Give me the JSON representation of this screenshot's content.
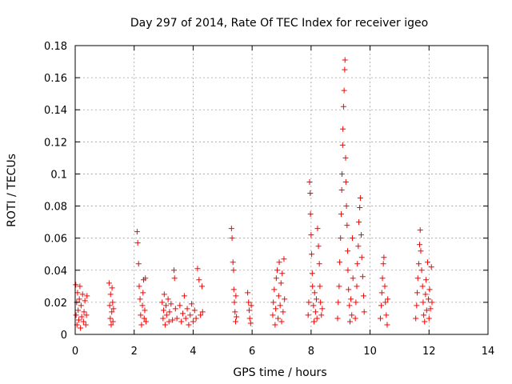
{
  "chart_data": {
    "type": "scatter",
    "title": "Day 297 of 2014, Rate Of TEC Index for receiver igeo",
    "xlabel": "GPS time / hours",
    "ylabel": "ROTI / TECUs",
    "xlim": [
      0,
      14
    ],
    "ylim": [
      0,
      0.18
    ],
    "xticks": [
      "0",
      "2",
      "4",
      "6",
      "8",
      "10",
      "12",
      "14"
    ],
    "yticks": [
      "0",
      "0.02",
      "0.04",
      "0.06",
      "0.08",
      "0.1",
      "0.12",
      "0.14",
      "0.16",
      "0.18"
    ],
    "grid": true,
    "marker": "+",
    "color": "#ff0000",
    "series": [
      {
        "name": "ROTI",
        "points": [
          [
            0.02,
            0.031
          ],
          [
            0.03,
            0.012
          ],
          [
            0.05,
            0.02
          ],
          [
            0.06,
            0.006
          ],
          [
            0.08,
            0.026
          ],
          [
            0.1,
            0.015
          ],
          [
            0.12,
            0.009
          ],
          [
            0.14,
            0.022
          ],
          [
            0.16,
            0.03
          ],
          [
            0.18,
            0.004
          ],
          [
            0.2,
            0.018
          ],
          [
            0.22,
            0.011
          ],
          [
            0.25,
            0.025
          ],
          [
            0.28,
            0.008
          ],
          [
            0.3,
            0.014
          ],
          [
            0.33,
            0.021
          ],
          [
            0.36,
            0.006
          ],
          [
            0.38,
            0.012
          ],
          [
            0.4,
            0.024
          ],
          [
            1.15,
            0.032
          ],
          [
            1.17,
            0.018
          ],
          [
            1.19,
            0.01
          ],
          [
            1.2,
            0.025
          ],
          [
            1.22,
            0.006
          ],
          [
            1.24,
            0.014
          ],
          [
            1.25,
            0.029
          ],
          [
            1.27,
            0.02
          ],
          [
            1.28,
            0.008
          ],
          [
            1.3,
            0.016
          ],
          [
            2.1,
            0.064
          ],
          [
            2.12,
            0.057
          ],
          [
            2.15,
            0.044
          ],
          [
            2.17,
            0.03
          ],
          [
            2.2,
            0.022
          ],
          [
            2.22,
            0.012
          ],
          [
            2.25,
            0.006
          ],
          [
            2.28,
            0.018
          ],
          [
            2.3,
            0.026
          ],
          [
            2.32,
            0.034
          ],
          [
            2.34,
            0.01
          ],
          [
            2.36,
            0.015
          ],
          [
            2.38,
            0.035
          ],
          [
            2.4,
            0.008
          ],
          [
            2.95,
            0.02
          ],
          [
            2.98,
            0.01
          ],
          [
            3.0,
            0.015
          ],
          [
            3.02,
            0.025
          ],
          [
            3.05,
            0.006
          ],
          [
            3.08,
            0.018
          ],
          [
            3.1,
            0.012
          ],
          [
            3.15,
            0.022
          ],
          [
            3.18,
            0.008
          ],
          [
            3.2,
            0.014
          ],
          [
            3.25,
            0.019
          ],
          [
            3.3,
            0.009
          ],
          [
            3.35,
            0.04
          ],
          [
            3.37,
            0.035
          ],
          [
            3.4,
            0.016
          ],
          [
            3.45,
            0.01
          ],
          [
            3.55,
            0.018
          ],
          [
            3.6,
            0.008
          ],
          [
            3.65,
            0.013
          ],
          [
            3.7,
            0.024
          ],
          [
            3.75,
            0.01
          ],
          [
            3.8,
            0.016
          ],
          [
            3.85,
            0.006
          ],
          [
            3.9,
            0.012
          ],
          [
            3.95,
            0.019
          ],
          [
            4.0,
            0.008
          ],
          [
            4.05,
            0.015
          ],
          [
            4.1,
            0.01
          ],
          [
            4.15,
            0.041
          ],
          [
            4.2,
            0.034
          ],
          [
            4.25,
            0.012
          ],
          [
            4.3,
            0.03
          ],
          [
            4.32,
            0.014
          ],
          [
            5.3,
            0.066
          ],
          [
            5.32,
            0.06
          ],
          [
            5.35,
            0.045
          ],
          [
            5.37,
            0.04
          ],
          [
            5.38,
            0.028
          ],
          [
            5.4,
            0.02
          ],
          [
            5.42,
            0.014
          ],
          [
            5.44,
            0.008
          ],
          [
            5.45,
            0.024
          ],
          [
            5.47,
            0.011
          ],
          [
            5.85,
            0.026
          ],
          [
            5.88,
            0.02
          ],
          [
            5.9,
            0.015
          ],
          [
            5.92,
            0.01
          ],
          [
            5.95,
            0.007
          ],
          [
            5.97,
            0.018
          ],
          [
            6.7,
            0.012
          ],
          [
            6.72,
            0.02
          ],
          [
            6.75,
            0.028
          ],
          [
            6.78,
            0.006
          ],
          [
            6.8,
            0.016
          ],
          [
            6.82,
            0.035
          ],
          [
            6.85,
            0.04
          ],
          [
            6.88,
            0.01
          ],
          [
            6.9,
            0.024
          ],
          [
            6.92,
            0.045
          ],
          [
            6.95,
            0.018
          ],
          [
            6.98,
            0.032
          ],
          [
            7.0,
            0.008
          ],
          [
            7.02,
            0.038
          ],
          [
            7.05,
            0.014
          ],
          [
            7.08,
            0.047
          ],
          [
            7.1,
            0.022
          ],
          [
            7.9,
            0.012
          ],
          [
            7.92,
            0.02
          ],
          [
            7.95,
            0.095
          ],
          [
            7.97,
            0.088
          ],
          [
            7.98,
            0.075
          ],
          [
            8.0,
            0.062
          ],
          [
            8.02,
            0.05
          ],
          [
            8.04,
            0.038
          ],
          [
            8.05,
            0.03
          ],
          [
            8.08,
            0.018
          ],
          [
            8.1,
            0.008
          ],
          [
            8.12,
            0.026
          ],
          [
            8.15,
            0.014
          ],
          [
            8.18,
            0.022
          ],
          [
            8.2,
            0.01
          ],
          [
            8.22,
            0.066
          ],
          [
            8.25,
            0.055
          ],
          [
            8.28,
            0.044
          ],
          [
            8.3,
            0.03
          ],
          [
            8.32,
            0.02
          ],
          [
            8.35,
            0.012
          ],
          [
            8.38,
            0.016
          ],
          [
            8.9,
            0.01
          ],
          [
            8.92,
            0.02
          ],
          [
            8.95,
            0.03
          ],
          [
            8.97,
            0.045
          ],
          [
            9.0,
            0.06
          ],
          [
            9.02,
            0.075
          ],
          [
            9.04,
            0.09
          ],
          [
            9.05,
            0.1
          ],
          [
            9.07,
            0.118
          ],
          [
            9.08,
            0.128
          ],
          [
            9.1,
            0.142
          ],
          [
            9.12,
            0.152
          ],
          [
            9.14,
            0.165
          ],
          [
            9.15,
            0.171
          ],
          [
            9.17,
            0.11
          ],
          [
            9.18,
            0.095
          ],
          [
            9.2,
            0.08
          ],
          [
            9.22,
            0.068
          ],
          [
            9.24,
            0.052
          ],
          [
            9.25,
            0.04
          ],
          [
            9.27,
            0.028
          ],
          [
            9.3,
            0.018
          ],
          [
            9.32,
            0.008
          ],
          [
            9.35,
            0.022
          ],
          [
            9.38,
            0.012
          ],
          [
            9.4,
            0.06
          ],
          [
            9.42,
            0.035
          ],
          [
            9.5,
            0.01
          ],
          [
            9.52,
            0.02
          ],
          [
            9.55,
            0.03
          ],
          [
            9.57,
            0.044
          ],
          [
            9.6,
            0.055
          ],
          [
            9.62,
            0.07
          ],
          [
            9.65,
            0.079
          ],
          [
            9.67,
            0.085
          ],
          [
            9.7,
            0.062
          ],
          [
            9.72,
            0.048
          ],
          [
            9.75,
            0.036
          ],
          [
            9.78,
            0.024
          ],
          [
            9.8,
            0.014
          ],
          [
            10.35,
            0.01
          ],
          [
            10.38,
            0.018
          ],
          [
            10.4,
            0.026
          ],
          [
            10.42,
            0.035
          ],
          [
            10.45,
            0.044
          ],
          [
            10.47,
            0.048
          ],
          [
            10.5,
            0.03
          ],
          [
            10.52,
            0.02
          ],
          [
            10.55,
            0.012
          ],
          [
            10.58,
            0.006
          ],
          [
            10.6,
            0.022
          ],
          [
            11.55,
            0.01
          ],
          [
            11.58,
            0.018
          ],
          [
            11.6,
            0.026
          ],
          [
            11.62,
            0.035
          ],
          [
            11.65,
            0.044
          ],
          [
            11.68,
            0.056
          ],
          [
            11.7,
            0.065
          ],
          [
            11.72,
            0.052
          ],
          [
            11.75,
            0.04
          ],
          [
            11.78,
            0.03
          ],
          [
            11.8,
            0.02
          ],
          [
            11.82,
            0.012
          ],
          [
            11.85,
            0.008
          ],
          [
            11.88,
            0.025
          ],
          [
            11.9,
            0.034
          ],
          [
            11.92,
            0.015
          ],
          [
            11.95,
            0.045
          ],
          [
            11.98,
            0.022
          ],
          [
            12.0,
            0.01
          ],
          [
            12.02,
            0.028
          ],
          [
            12.05,
            0.016
          ],
          [
            12.08,
            0.042
          ],
          [
            12.1,
            0.02
          ]
        ]
      }
    ]
  }
}
